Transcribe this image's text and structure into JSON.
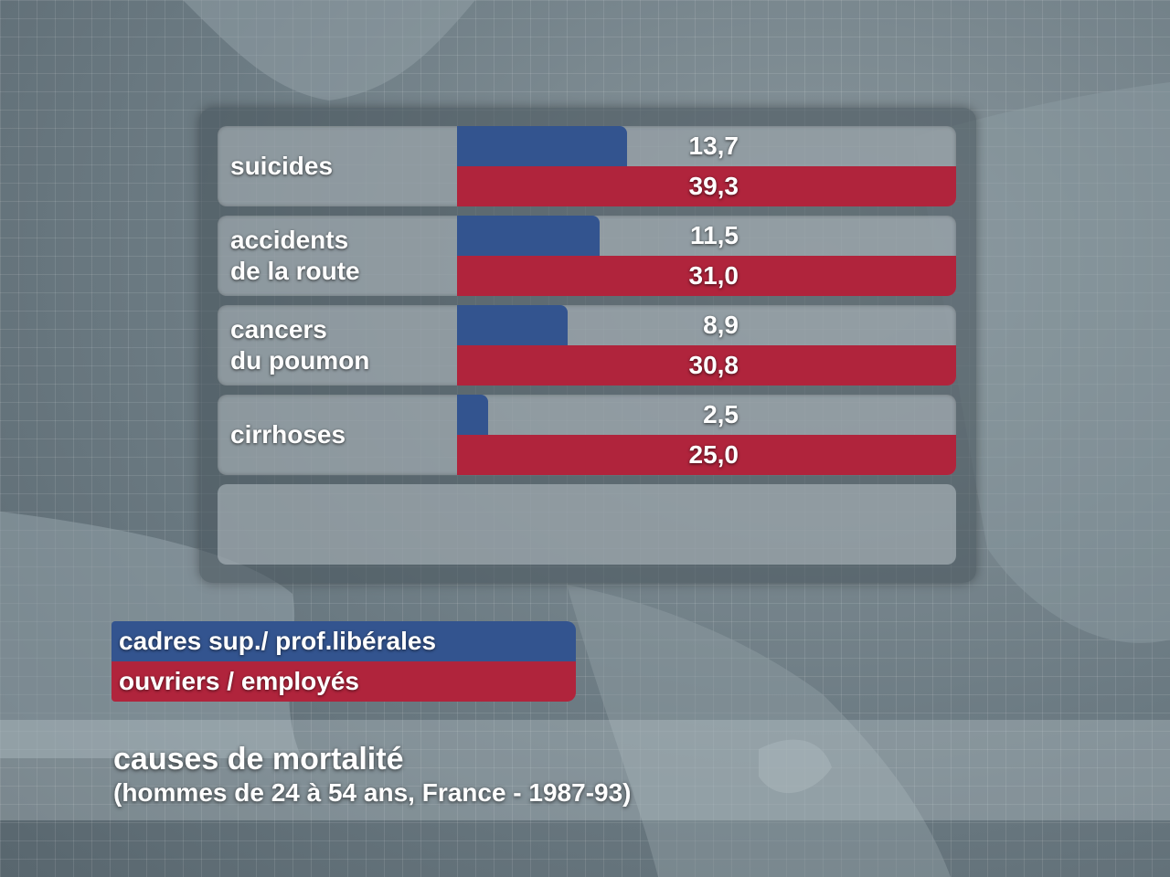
{
  "chart_data": {
    "type": "bar",
    "orientation": "horizontal",
    "title": "causes de mortalité",
    "subtitle": "(hommes de 24 à 54 ans, France - 1987-93)",
    "categories": [
      "suicides",
      "accidents\nde la route",
      "cancers\ndu poumon",
      "cirrhoses"
    ],
    "series": [
      {
        "name": "cadres sup./ prof.libérales",
        "color": "#33548f",
        "values": [
          13.7,
          11.5,
          8.9,
          2.5
        ],
        "labels": [
          "13,7",
          "11,5",
          "8,9",
          "2,5"
        ]
      },
      {
        "name": "ouvriers / employés",
        "color": "#b0243c",
        "values": [
          39.3,
          31.0,
          30.8,
          25.0
        ],
        "labels": [
          "39,3",
          "31,0",
          "30,8",
          "25,0"
        ]
      }
    ],
    "legend": "bottom-left",
    "grid": false
  }
}
